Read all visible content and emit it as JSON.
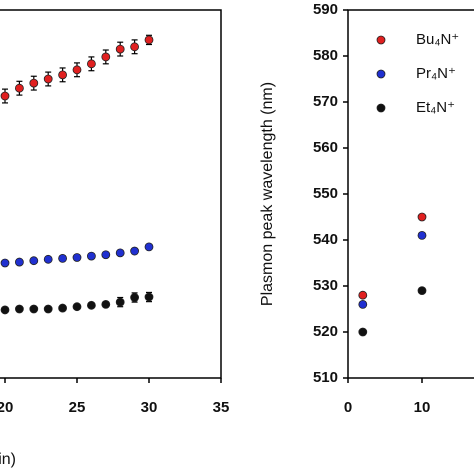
{
  "chart_data": [
    {
      "type": "scatter",
      "xlabel": "Time (min)",
      "x": [
        20,
        21,
        22,
        23,
        24,
        25,
        26,
        27,
        28,
        29,
        30
      ],
      "xlim": [
        0,
        35
      ],
      "xticks": [
        20,
        25,
        30,
        35
      ],
      "ylim": [
        510,
        590
      ],
      "series": [
        {
          "name": "Bu₄N⁺",
          "color": "#e02020",
          "values": [
            571.3,
            573,
            574.1,
            575,
            575.9,
            577,
            578.3,
            579.8,
            581.5,
            582,
            583.5
          ],
          "errors": [
            1.5,
            1.5,
            1.5,
            1.5,
            1.5,
            1.5,
            1.5,
            1.5,
            1.5,
            1.5,
            1
          ]
        },
        {
          "name": "Pr₄N⁺",
          "color": "#2030d0",
          "values": [
            535,
            535.2,
            535.5,
            535.8,
            536,
            536.2,
            536.5,
            536.8,
            537.2,
            537.6,
            538.5
          ],
          "errors": [
            0.5,
            0.5,
            0.5,
            0.5,
            0.5,
            0.5,
            0.5,
            0.5,
            0.5,
            0.5,
            0.5
          ]
        },
        {
          "name": "Et₄N⁺",
          "color": "#111111",
          "values": [
            524.8,
            525,
            525,
            525,
            525.2,
            525.5,
            525.8,
            526,
            526.5,
            527.5,
            527.6
          ],
          "errors": [
            0.5,
            0.5,
            0.5,
            0.5,
            0.5,
            0.5,
            0.5,
            0.5,
            1,
            1,
            1
          ]
        }
      ]
    },
    {
      "type": "scatter",
      "ylabel": "Plasmon peak wavelength (nm)",
      "x": [
        2,
        10
      ],
      "xlim": [
        0,
        20
      ],
      "xticks": [
        0,
        10
      ],
      "ylim": [
        510,
        590
      ],
      "yticks": [
        510,
        520,
        530,
        540,
        550,
        560,
        570,
        580,
        590
      ],
      "legend": "upper left",
      "series": [
        {
          "name": "Bu₄N⁺",
          "color": "#e02020",
          "values": [
            528,
            545
          ]
        },
        {
          "name": "Pr₄N⁺",
          "color": "#2030d0",
          "values": [
            526,
            541
          ]
        },
        {
          "name": "Et₄N⁺",
          "color": "#111111",
          "values": [
            520,
            529
          ]
        }
      ]
    }
  ]
}
